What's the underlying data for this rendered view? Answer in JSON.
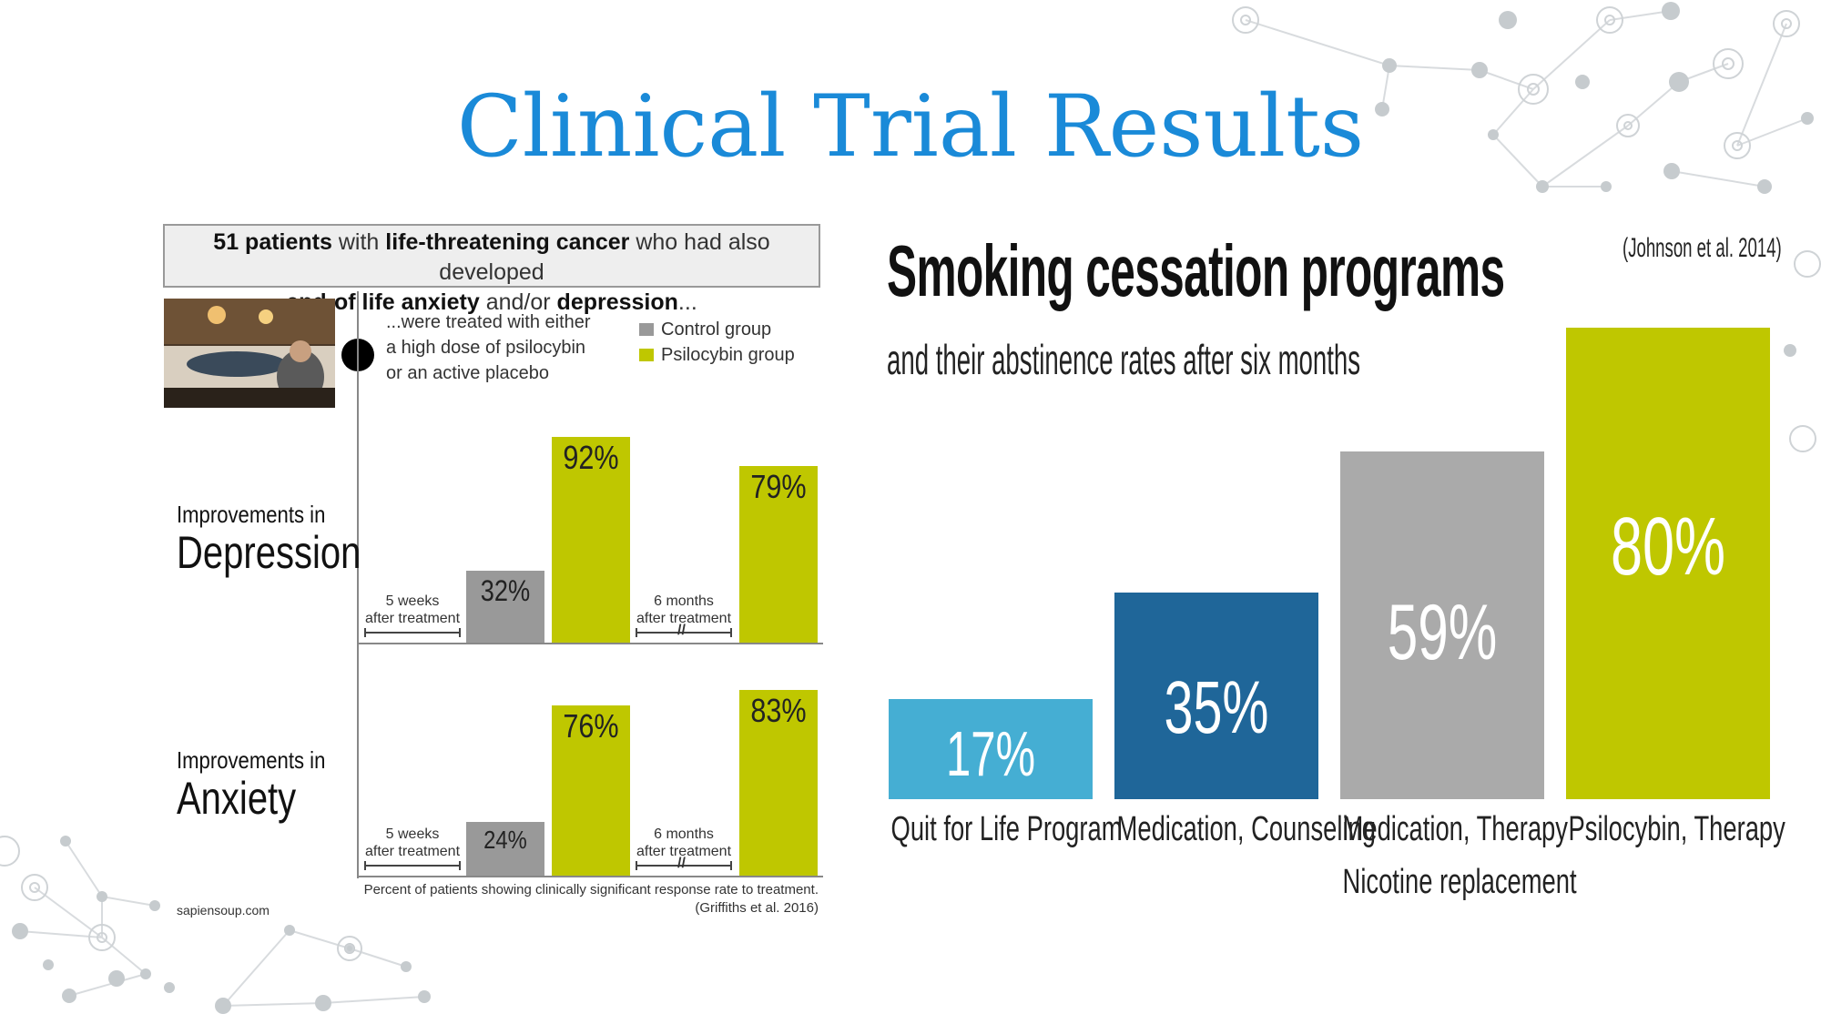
{
  "slide": {
    "title": "Clinical Trial Results"
  },
  "infographic": {
    "header_parts": [
      {
        "text": "51 patients",
        "bold": true
      },
      {
        "text": " with ",
        "bold": false
      },
      {
        "text": "life-threatening cancer",
        "bold": true
      },
      {
        "text": " who had also developed ",
        "bold": false
      },
      {
        "text": "end-of life anxiety",
        "bold": true
      },
      {
        "text": " and/or ",
        "bold": false
      },
      {
        "text": "depression",
        "bold": true
      },
      {
        "text": "...",
        "bold": false
      }
    ],
    "treated_lines": [
      "...were treated with either",
      "a high dose of psilocybin",
      "or an active placebo"
    ],
    "note": "Percent of patients showing clinically significant response rate to treatment.",
    "citation": "(Griffiths et al. 2016)",
    "source": "sapiensoup.com"
  },
  "chart_data": [
    {
      "type": "bar",
      "title": "Improvements in Depression",
      "title_small": "Improvements in",
      "title_big": "Depression",
      "categories": [
        "5 weeks after treatment",
        "6 months after treatment"
      ],
      "category_lines": [
        [
          "5 weeks",
          "after treatment"
        ],
        [
          "6 months",
          "after treatment"
        ]
      ],
      "series": [
        {
          "name": "Control group",
          "color": "#999999",
          "values": [
            32,
            null
          ],
          "labels": [
            "32%",
            ""
          ]
        },
        {
          "name": "Psilocybin group",
          "color": "#bfc700",
          "values": [
            92,
            79
          ],
          "labels": [
            "92%",
            "79%"
          ]
        }
      ],
      "ylim": [
        0,
        100
      ],
      "legend": "top-right"
    },
    {
      "type": "bar",
      "title": "Improvements in Anxiety",
      "title_small": "Improvements in",
      "title_big": "Anxiety",
      "categories": [
        "5 weeks after treatment",
        "6 months after treatment"
      ],
      "category_lines": [
        [
          "5 weeks",
          "after treatment"
        ],
        [
          "6 months",
          "after treatment"
        ]
      ],
      "series": [
        {
          "name": "Control group",
          "color": "#999999",
          "values": [
            24,
            null
          ],
          "labels": [
            "24%",
            ""
          ]
        },
        {
          "name": "Psilocybin group",
          "color": "#bfc700",
          "values": [
            76,
            83
          ],
          "labels": [
            "76%",
            "83%"
          ]
        }
      ],
      "ylim": [
        0,
        100
      ]
    },
    {
      "type": "bar",
      "title": "Smoking cessation programs",
      "subtitle": "and their abstinence rates after six months",
      "citation": "(Johnson et al. 2014)",
      "categories": [
        "Quit for Life Program",
        "Medication, Counseling",
        "Medication, Therapy Nicotine replacement",
        "Psilocybin, Therapy"
      ],
      "category_lines": [
        [
          "Quit for Life Program"
        ],
        [
          "Medication, Counseling"
        ],
        [
          "Medication, Therapy",
          "Nicotine replacement"
        ],
        [
          "Psilocybin, Therapy"
        ]
      ],
      "values": [
        17,
        35,
        59,
        80
      ],
      "labels": [
        "17%",
        "35%",
        "59%",
        "80%"
      ],
      "colors": [
        "#45aed3",
        "#1f6699",
        "#aaaaaa",
        "#bfc700"
      ],
      "ylim": [
        0,
        80
      ]
    }
  ]
}
